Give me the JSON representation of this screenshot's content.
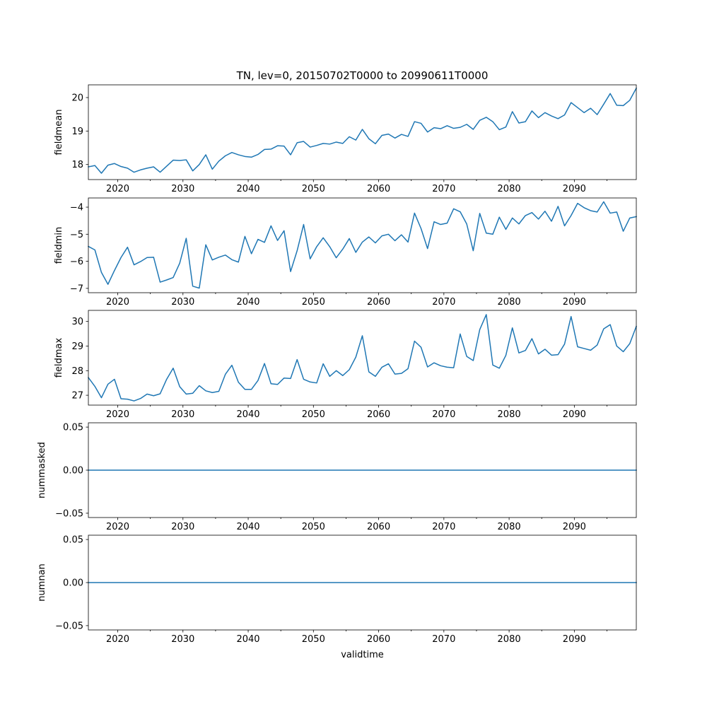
{
  "chart_data": {
    "type": "line",
    "title": "TN, lev=0, 20150702T0000 to 20990611T0000",
    "xlabel": "validtime",
    "series_color": "#1f77b4",
    "x": [
      2015.5,
      2016.5,
      2017.5,
      2018.5,
      2019.5,
      2020.5,
      2021.5,
      2022.5,
      2023.5,
      2024.5,
      2025.5,
      2026.5,
      2027.5,
      2028.5,
      2029.5,
      2030.5,
      2031.5,
      2032.5,
      2033.5,
      2034.5,
      2035.5,
      2036.5,
      2037.5,
      2038.5,
      2039.5,
      2040.5,
      2041.5,
      2042.5,
      2043.5,
      2044.5,
      2045.5,
      2046.5,
      2047.5,
      2048.5,
      2049.5,
      2050.5,
      2051.5,
      2052.5,
      2053.5,
      2054.5,
      2055.5,
      2056.5,
      2057.5,
      2058.5,
      2059.5,
      2060.5,
      2061.5,
      2062.5,
      2063.5,
      2064.5,
      2065.5,
      2066.5,
      2067.5,
      2068.5,
      2069.5,
      2070.5,
      2071.5,
      2072.5,
      2073.5,
      2074.5,
      2075.5,
      2076.5,
      2077.5,
      2078.5,
      2079.5,
      2080.5,
      2081.5,
      2082.5,
      2083.5,
      2084.5,
      2085.5,
      2086.5,
      2087.5,
      2088.5,
      2089.5,
      2090.5,
      2091.5,
      2092.5,
      2093.5,
      2094.5,
      2095.5,
      2096.5,
      2097.5,
      2098.5,
      2099.5
    ],
    "xlim": [
      2015.5,
      2099.5
    ],
    "xticks": [
      2020,
      2030,
      2040,
      2050,
      2060,
      2070,
      2080,
      2090
    ],
    "xtick_labels": [
      "2020",
      "2030",
      "2040",
      "2050",
      "2060",
      "2070",
      "2080",
      "2090"
    ],
    "xminor": [
      2015,
      2025,
      2035,
      2045,
      2055,
      2065,
      2075,
      2085,
      2095
    ],
    "panels": [
      {
        "ylabel": "fieldmean",
        "ylim": [
          17.55,
          20.38
        ],
        "yticks": [
          18,
          19,
          20
        ],
        "ytick_labels": [
          "18",
          "19",
          "20"
        ],
        "values": [
          17.93,
          17.97,
          17.74,
          17.98,
          18.03,
          17.94,
          17.89,
          17.77,
          17.84,
          17.89,
          17.93,
          17.77,
          17.95,
          18.13,
          18.12,
          18.14,
          17.81,
          18.0,
          18.29,
          17.86,
          18.1,
          18.26,
          18.36,
          18.29,
          18.24,
          18.22,
          18.3,
          18.45,
          18.46,
          18.56,
          18.55,
          18.29,
          18.65,
          18.69,
          18.52,
          18.57,
          18.63,
          18.61,
          18.67,
          18.63,
          18.83,
          18.73,
          19.05,
          18.77,
          18.62,
          18.87,
          18.91,
          18.79,
          18.9,
          18.84,
          19.28,
          19.23,
          18.97,
          19.1,
          19.07,
          19.16,
          19.08,
          19.11,
          19.2,
          19.05,
          19.32,
          19.41,
          19.28,
          19.04,
          19.12,
          19.58,
          19.24,
          19.28,
          19.6,
          19.4,
          19.55,
          19.45,
          19.37,
          19.48,
          19.85,
          19.7,
          19.55,
          19.68,
          19.49,
          19.8,
          20.12,
          19.77,
          19.76,
          19.92,
          20.28
        ]
      },
      {
        "ylabel": "fieldmin",
        "ylim": [
          -7.16,
          -3.66
        ],
        "yticks": [
          -7,
          -6,
          -5,
          -4
        ],
        "ytick_labels": [
          "−7",
          "−6",
          "−5",
          "−4"
        ],
        "values": [
          -5.45,
          -5.58,
          -6.41,
          -6.85,
          -6.34,
          -5.86,
          -5.48,
          -6.13,
          -6.01,
          -5.86,
          -5.85,
          -6.77,
          -6.69,
          -6.6,
          -6.07,
          -5.15,
          -6.92,
          -6.99,
          -5.39,
          -5.95,
          -5.85,
          -5.77,
          -5.94,
          -6.03,
          -5.08,
          -5.72,
          -5.19,
          -5.3,
          -4.69,
          -5.23,
          -4.87,
          -6.38,
          -5.61,
          -4.64,
          -5.91,
          -5.46,
          -5.13,
          -5.46,
          -5.87,
          -5.55,
          -5.16,
          -5.67,
          -5.29,
          -5.1,
          -5.32,
          -5.06,
          -5.0,
          -5.24,
          -5.02,
          -5.29,
          -4.22,
          -4.79,
          -5.53,
          -4.54,
          -4.64,
          -4.59,
          -4.06,
          -4.17,
          -4.62,
          -5.61,
          -4.23,
          -4.96,
          -5.0,
          -4.37,
          -4.82,
          -4.4,
          -4.62,
          -4.31,
          -4.2,
          -4.44,
          -4.15,
          -4.52,
          -3.97,
          -4.69,
          -4.31,
          -3.86,
          -4.02,
          -4.13,
          -4.18,
          -3.8,
          -4.22,
          -4.18,
          -4.89,
          -4.4,
          -4.35
        ]
      },
      {
        "ylabel": "fieldmax",
        "ylim": [
          26.6,
          30.45
        ],
        "yticks": [
          27,
          28,
          29,
          30
        ],
        "ytick_labels": [
          "27",
          "28",
          "29",
          "30"
        ],
        "values": [
          27.72,
          27.36,
          26.9,
          27.45,
          27.65,
          26.86,
          26.84,
          26.77,
          26.87,
          27.05,
          26.98,
          27.06,
          27.65,
          28.1,
          27.35,
          27.05,
          27.08,
          27.39,
          27.18,
          27.11,
          27.16,
          27.85,
          28.22,
          27.53,
          27.24,
          27.24,
          27.6,
          28.29,
          27.47,
          27.44,
          27.7,
          27.68,
          28.45,
          27.65,
          27.54,
          27.5,
          28.28,
          27.77,
          28.0,
          27.8,
          28.04,
          28.55,
          29.42,
          27.95,
          27.77,
          28.14,
          28.28,
          27.86,
          27.89,
          28.08,
          29.2,
          28.95,
          28.15,
          28.32,
          28.2,
          28.14,
          28.12,
          29.49,
          28.58,
          28.41,
          29.67,
          30.28,
          28.23,
          28.1,
          28.62,
          29.74,
          28.72,
          28.82,
          29.3,
          28.68,
          28.87,
          28.63,
          28.65,
          29.08,
          30.2,
          28.97,
          28.9,
          28.83,
          29.04,
          29.7,
          29.87,
          29.0,
          28.77,
          29.1,
          29.8
        ]
      },
      {
        "ylabel": "nummasked",
        "ylim": [
          -0.055,
          0.055
        ],
        "yticks": [
          -0.05,
          0.0,
          0.05
        ],
        "ytick_labels": [
          "−0.05",
          "0.00",
          "0.05"
        ],
        "values": [
          0,
          0,
          0,
          0,
          0,
          0,
          0,
          0,
          0,
          0,
          0,
          0,
          0,
          0,
          0,
          0,
          0,
          0,
          0,
          0,
          0,
          0,
          0,
          0,
          0,
          0,
          0,
          0,
          0,
          0,
          0,
          0,
          0,
          0,
          0,
          0,
          0,
          0,
          0,
          0,
          0,
          0,
          0,
          0,
          0,
          0,
          0,
          0,
          0,
          0,
          0,
          0,
          0,
          0,
          0,
          0,
          0,
          0,
          0,
          0,
          0,
          0,
          0,
          0,
          0,
          0,
          0,
          0,
          0,
          0,
          0,
          0,
          0,
          0,
          0,
          0,
          0,
          0,
          0,
          0,
          0,
          0,
          0,
          0,
          0
        ]
      },
      {
        "ylabel": "numnan",
        "ylim": [
          -0.055,
          0.055
        ],
        "yticks": [
          -0.05,
          0.0,
          0.05
        ],
        "ytick_labels": [
          "−0.05",
          "0.00",
          "0.05"
        ],
        "values": [
          0,
          0,
          0,
          0,
          0,
          0,
          0,
          0,
          0,
          0,
          0,
          0,
          0,
          0,
          0,
          0,
          0,
          0,
          0,
          0,
          0,
          0,
          0,
          0,
          0,
          0,
          0,
          0,
          0,
          0,
          0,
          0,
          0,
          0,
          0,
          0,
          0,
          0,
          0,
          0,
          0,
          0,
          0,
          0,
          0,
          0,
          0,
          0,
          0,
          0,
          0,
          0,
          0,
          0,
          0,
          0,
          0,
          0,
          0,
          0,
          0,
          0,
          0,
          0,
          0,
          0,
          0,
          0,
          0,
          0,
          0,
          0,
          0,
          0,
          0,
          0,
          0,
          0,
          0,
          0,
          0,
          0,
          0,
          0,
          0
        ]
      }
    ]
  }
}
